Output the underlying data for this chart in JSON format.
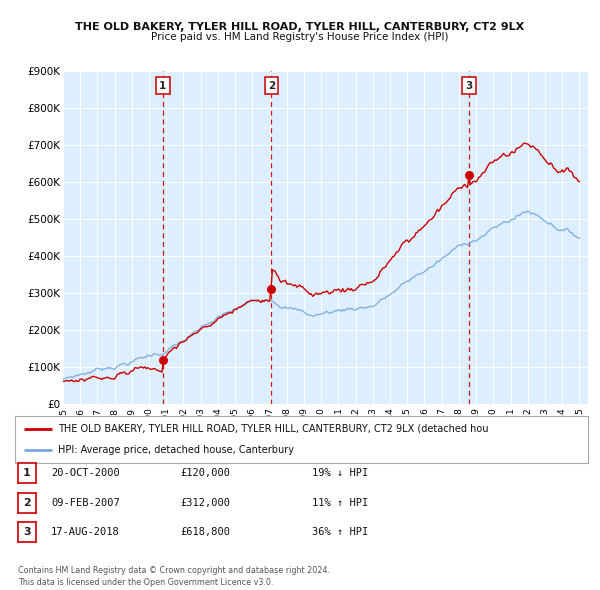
{
  "title_line1": "THE OLD BAKERY, TYLER HILL ROAD, TYLER HILL, CANTERBURY, CT2 9LX",
  "title_line2": "Price paid vs. HM Land Registry's House Price Index (HPI)",
  "xlim": [
    1995.0,
    2025.5
  ],
  "ylim": [
    0,
    900000
  ],
  "yticks": [
    0,
    100000,
    200000,
    300000,
    400000,
    500000,
    600000,
    700000,
    800000,
    900000
  ],
  "ytick_labels": [
    "£0",
    "£100K",
    "£200K",
    "£300K",
    "£400K",
    "£500K",
    "£600K",
    "£700K",
    "£800K",
    "£900K"
  ],
  "xticks": [
    1995,
    1996,
    1997,
    1998,
    1999,
    2000,
    2001,
    2002,
    2003,
    2004,
    2005,
    2006,
    2007,
    2008,
    2009,
    2010,
    2011,
    2012,
    2013,
    2014,
    2015,
    2016,
    2017,
    2018,
    2019,
    2020,
    2021,
    2022,
    2023,
    2024,
    2025
  ],
  "sale_color": "#cc0000",
  "hpi_color": "#7aaadd",
  "vline_color": "#cc0000",
  "background_color": "#ddeeff",
  "panel_bg": "#ffffff",
  "grid_color": "#ffffff",
  "transactions": [
    {
      "label": "1",
      "date": 2000.8,
      "price": 120000,
      "date_str": "20-OCT-2000",
      "price_str": "£120,000",
      "hpi_str": "19% ↓ HPI"
    },
    {
      "label": "2",
      "date": 2007.1,
      "price": 312000,
      "date_str": "09-FEB-2007",
      "price_str": "£312,000",
      "hpi_str": "11% ↑ HPI"
    },
    {
      "label": "3",
      "date": 2018.6,
      "price": 618800,
      "date_str": "17-AUG-2018",
      "price_str": "£618,800",
      "hpi_str": "36% ↑ HPI"
    }
  ],
  "legend_line1": "THE OLD BAKERY, TYLER HILL ROAD, TYLER HILL, CANTERBURY, CT2 9LX (detached hou",
  "legend_line2": "HPI: Average price, detached house, Canterbury",
  "footnote": "Contains HM Land Registry data © Crown copyright and database right 2024.\nThis data is licensed under the Open Government Licence v3.0."
}
